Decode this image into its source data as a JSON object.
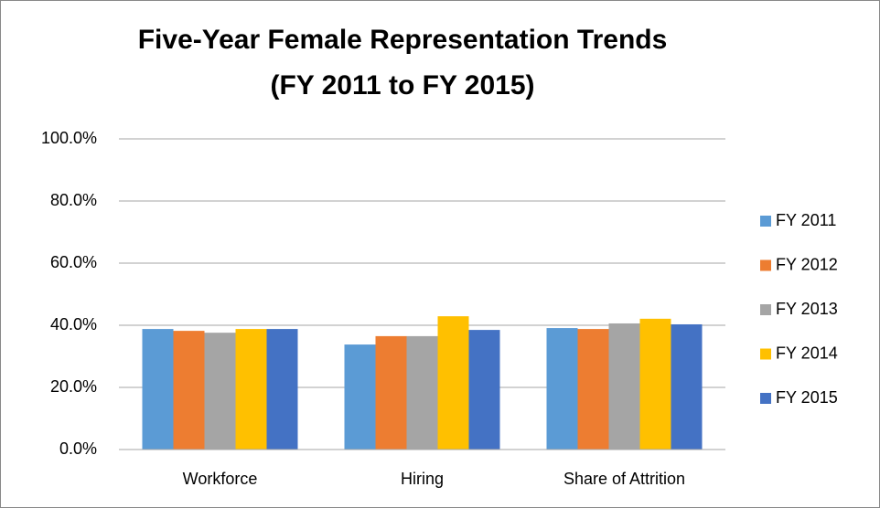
{
  "chart_data": {
    "type": "bar",
    "title": "Five-Year Female Representation Trends",
    "subtitle": "(FY 2011 to FY 2015)",
    "categories": [
      "Workforce",
      "Hiring",
      "Share of Attrition"
    ],
    "series": [
      {
        "name": "FY 2011",
        "color": "#5b9bd5",
        "values": [
          38.8,
          33.8,
          39.1
        ]
      },
      {
        "name": "FY 2012",
        "color": "#ed7d31",
        "values": [
          38.2,
          36.5,
          38.8
        ]
      },
      {
        "name": "FY 2013",
        "color": "#a5a5a5",
        "values": [
          37.6,
          36.5,
          40.6
        ]
      },
      {
        "name": "FY 2014",
        "color": "#ffc000",
        "values": [
          38.8,
          42.9,
          42.1
        ]
      },
      {
        "name": "FY 2015",
        "color": "#4472c4",
        "values": [
          38.8,
          38.5,
          40.3
        ]
      }
    ],
    "ylim": [
      0,
      100
    ],
    "yticks": [
      {
        "value": 0,
        "label": "0.0%"
      },
      {
        "value": 20,
        "label": "20.0%"
      },
      {
        "value": 40,
        "label": "40.0%"
      },
      {
        "value": 60,
        "label": "60.0%"
      },
      {
        "value": 80,
        "label": "80.0%"
      },
      {
        "value": 100,
        "label": "100.0%"
      }
    ],
    "grid": true,
    "legend": "right"
  }
}
